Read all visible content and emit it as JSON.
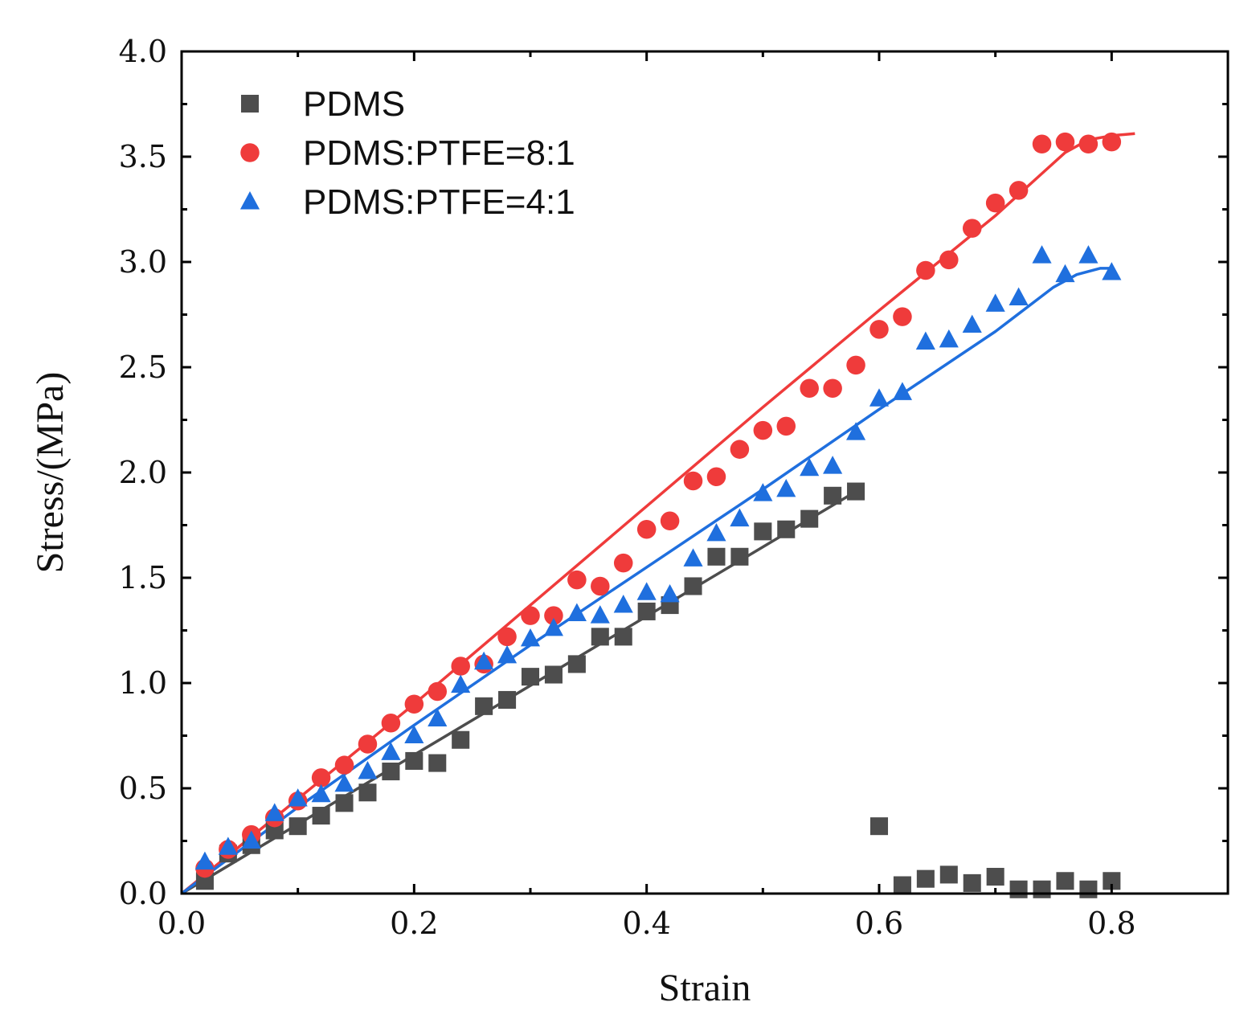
{
  "chart_data": {
    "type": "scatter",
    "title": "",
    "xlabel": "Strain",
    "ylabel": "Stress/(MPa)",
    "xlim": [
      0.0,
      0.9
    ],
    "ylim": [
      0.0,
      4.0
    ],
    "x_ticks": [
      0.0,
      0.2,
      0.4,
      0.6,
      0.8
    ],
    "x_tick_labels": [
      "0.0",
      "0.2",
      "0.4",
      "0.6",
      "0.8"
    ],
    "y_ticks": [
      0.0,
      0.5,
      1.0,
      1.5,
      2.0,
      2.5,
      3.0,
      3.5,
      4.0
    ],
    "y_tick_labels": [
      "0.0",
      "0.5",
      "1.0",
      "1.5",
      "2.0",
      "2.5",
      "3.0",
      "3.5",
      "4.0"
    ],
    "grid": false,
    "legend_position": "top-left",
    "series": [
      {
        "name": "PDMS",
        "marker": "square",
        "color": "#4d4d4d",
        "x": [
          0.02,
          0.04,
          0.06,
          0.08,
          0.1,
          0.12,
          0.14,
          0.16,
          0.18,
          0.2,
          0.22,
          0.24,
          0.26,
          0.28,
          0.3,
          0.32,
          0.34,
          0.36,
          0.38,
          0.4,
          0.42,
          0.44,
          0.46,
          0.48,
          0.5,
          0.52,
          0.54,
          0.56,
          0.58,
          0.6,
          0.62,
          0.64,
          0.66,
          0.68,
          0.7,
          0.72,
          0.74,
          0.76,
          0.78,
          0.8
        ],
        "y": [
          0.06,
          0.19,
          0.23,
          0.3,
          0.32,
          0.37,
          0.43,
          0.48,
          0.58,
          0.63,
          0.62,
          0.73,
          0.89,
          0.92,
          1.03,
          1.04,
          1.09,
          1.22,
          1.22,
          1.34,
          1.37,
          1.46,
          1.6,
          1.6,
          1.72,
          1.73,
          1.78,
          1.89,
          1.91,
          0.32,
          0.04,
          0.07,
          0.09,
          0.05,
          0.08,
          0.02,
          0.02,
          0.06,
          0.02,
          0.06
        ],
        "fit_x": [
          0.0,
          0.58
        ],
        "fit_y": [
          0.0,
          1.91
        ]
      },
      {
        "name": "PDMS:PTFE=8:1",
        "marker": "circle",
        "color": "#ef3b3b",
        "x": [
          0.02,
          0.04,
          0.06,
          0.08,
          0.1,
          0.12,
          0.14,
          0.16,
          0.18,
          0.2,
          0.22,
          0.24,
          0.26,
          0.28,
          0.3,
          0.32,
          0.34,
          0.36,
          0.38,
          0.4,
          0.42,
          0.44,
          0.46,
          0.48,
          0.5,
          0.52,
          0.54,
          0.56,
          0.58,
          0.6,
          0.62,
          0.64,
          0.66,
          0.68,
          0.7,
          0.72,
          0.74,
          0.76,
          0.78,
          0.8
        ],
        "y": [
          0.12,
          0.21,
          0.28,
          0.36,
          0.44,
          0.55,
          0.61,
          0.71,
          0.81,
          0.9,
          0.96,
          1.08,
          1.09,
          1.22,
          1.32,
          1.32,
          1.49,
          1.46,
          1.57,
          1.73,
          1.77,
          1.96,
          1.98,
          2.11,
          2.2,
          2.22,
          2.4,
          2.4,
          2.51,
          2.68,
          2.74,
          2.96,
          3.01,
          3.16,
          3.28,
          3.34,
          3.56,
          3.57,
          3.56,
          3.57
        ],
        "fit_x": [
          0.0,
          0.1,
          0.2,
          0.3,
          0.4,
          0.5,
          0.6,
          0.7,
          0.74,
          0.76,
          0.78,
          0.8,
          0.82
        ],
        "fit_y": [
          0.0,
          0.45,
          0.9,
          1.37,
          1.84,
          2.31,
          2.77,
          3.22,
          3.42,
          3.52,
          3.58,
          3.6,
          3.61
        ]
      },
      {
        "name": "PDMS:PTFE=4:1",
        "marker": "triangle",
        "color": "#1f6fde",
        "x": [
          0.02,
          0.04,
          0.06,
          0.08,
          0.1,
          0.12,
          0.14,
          0.16,
          0.18,
          0.2,
          0.22,
          0.24,
          0.26,
          0.28,
          0.3,
          0.32,
          0.34,
          0.36,
          0.38,
          0.4,
          0.42,
          0.44,
          0.46,
          0.48,
          0.5,
          0.52,
          0.54,
          0.56,
          0.58,
          0.6,
          0.62,
          0.64,
          0.66,
          0.68,
          0.7,
          0.72,
          0.74,
          0.76,
          0.78,
          0.8
        ],
        "y": [
          0.15,
          0.22,
          0.25,
          0.38,
          0.45,
          0.47,
          0.52,
          0.58,
          0.67,
          0.75,
          0.83,
          0.99,
          1.1,
          1.13,
          1.21,
          1.26,
          1.33,
          1.32,
          1.37,
          1.43,
          1.42,
          1.59,
          1.71,
          1.78,
          1.9,
          1.92,
          2.02,
          2.03,
          2.19,
          2.35,
          2.38,
          2.62,
          2.63,
          2.7,
          2.8,
          2.83,
          3.03,
          2.94,
          3.03,
          2.95
        ],
        "fit_x": [
          0.0,
          0.1,
          0.2,
          0.3,
          0.4,
          0.5,
          0.6,
          0.7,
          0.75,
          0.77,
          0.79,
          0.8
        ],
        "fit_y": [
          0.0,
          0.41,
          0.8,
          1.18,
          1.55,
          1.92,
          2.3,
          2.67,
          2.88,
          2.94,
          2.97,
          2.97
        ]
      }
    ]
  }
}
